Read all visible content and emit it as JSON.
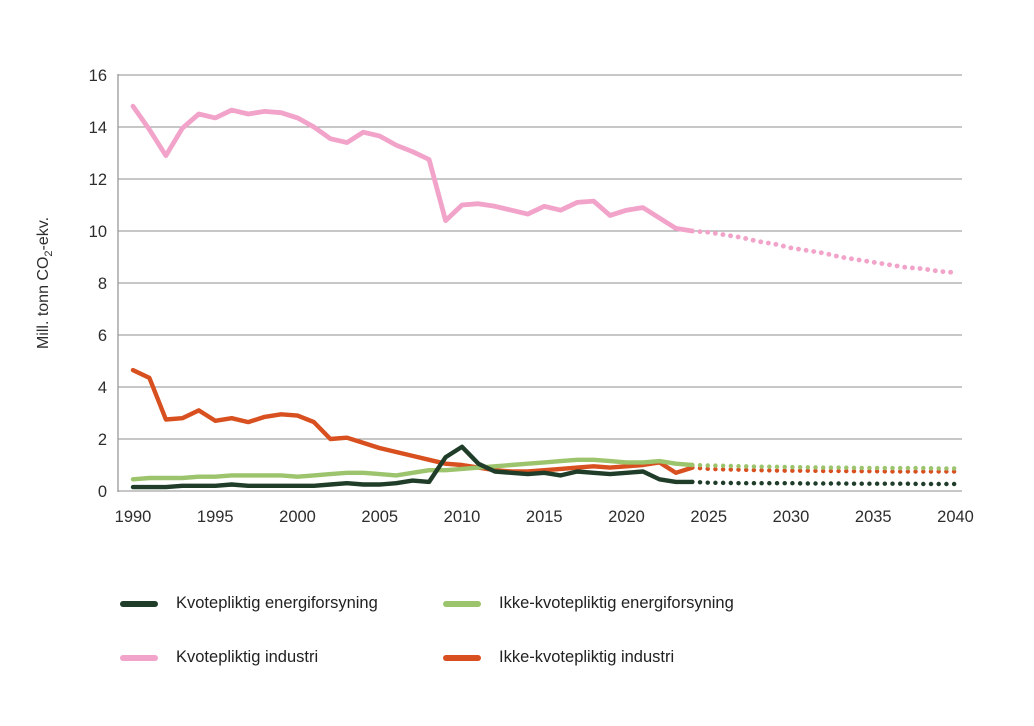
{
  "chart_title": "",
  "y_axis": {
    "label_pre": "Mill. tonn CO",
    "label_sub": "2",
    "label_post": "-ekv."
  },
  "colors": {
    "grid": "#8f8f8f",
    "tick_text": "#2d2d2d",
    "background": "#ffffff"
  },
  "legend": {
    "items": [
      {
        "label": "Kvotepliktig energiforsyning",
        "color": "#1f3d29"
      },
      {
        "label": "Ikke-kvotepliktig energiforsyning",
        "color": "#9cc46c"
      },
      {
        "label": "Kvotepliktig industri",
        "color": "#f2a3c9"
      },
      {
        "label": "Ikke-kvotepliktig industri",
        "color": "#d8501f"
      }
    ]
  },
  "chart_data": {
    "type": "line",
    "title": "",
    "xlabel": "",
    "ylabel": "Mill. tonn CO2-ekv.",
    "xlim": [
      1990,
      2040
    ],
    "ylim": [
      0,
      16
    ],
    "x_ticks": [
      1990,
      1995,
      2000,
      2005,
      2010,
      2015,
      2020,
      2025,
      2030,
      2035,
      2040
    ],
    "y_ticks": [
      0,
      2,
      4,
      6,
      8,
      10,
      12,
      14,
      16
    ],
    "grid": "horizontal",
    "legend_position": "bottom",
    "projection": "values from 2024 to 2040 are drawn as dotted projections",
    "solid_years_range": [
      1990,
      2024
    ],
    "dotted_years_range": [
      2024,
      2040
    ],
    "draw_order": [
      2,
      3,
      1,
      0
    ],
    "series": [
      {
        "name": "Kvotepliktig energiforsyning",
        "color": "#1f3d29",
        "line_width": 4.4,
        "solid": [
          0.15,
          0.15,
          0.15,
          0.2,
          0.2,
          0.2,
          0.25,
          0.2,
          0.2,
          0.2,
          0.2,
          0.2,
          0.25,
          0.3,
          0.25,
          0.25,
          0.3,
          0.4,
          0.35,
          1.3,
          1.7,
          1.05,
          0.75,
          0.7,
          0.65,
          0.7,
          0.6,
          0.75,
          0.7,
          0.65,
          0.7,
          0.75,
          0.45,
          0.35,
          0.35
        ],
        "dotted": [
          0.35,
          0.32,
          0.31,
          0.3,
          0.3,
          0.3,
          0.3,
          0.29,
          0.29,
          0.29,
          0.28,
          0.28,
          0.28,
          0.28,
          0.27,
          0.27,
          0.27
        ]
      },
      {
        "name": "Ikke-kvotepliktig energiforsyning",
        "color": "#9cc46c",
        "line_width": 4.4,
        "solid": [
          0.45,
          0.5,
          0.5,
          0.5,
          0.55,
          0.55,
          0.6,
          0.6,
          0.6,
          0.6,
          0.55,
          0.6,
          0.65,
          0.7,
          0.7,
          0.65,
          0.6,
          0.7,
          0.8,
          0.8,
          0.85,
          0.9,
          0.95,
          1.0,
          1.05,
          1.1,
          1.15,
          1.2,
          1.2,
          1.15,
          1.1,
          1.1,
          1.15,
          1.05,
          1.0
        ],
        "dotted": [
          1.0,
          0.98,
          0.97,
          0.95,
          0.94,
          0.93,
          0.92,
          0.91,
          0.9,
          0.9,
          0.89,
          0.89,
          0.88,
          0.88,
          0.88,
          0.87,
          0.87
        ]
      },
      {
        "name": "Kvotepliktig industri",
        "color": "#f2a3c9",
        "line_width": 4.8,
        "solid": [
          14.8,
          13.9,
          12.9,
          13.95,
          14.5,
          14.35,
          14.65,
          14.5,
          14.6,
          14.55,
          14.35,
          14.0,
          13.55,
          13.4,
          13.8,
          13.65,
          13.3,
          13.05,
          12.75,
          10.4,
          11.0,
          11.05,
          10.95,
          10.8,
          10.65,
          10.95,
          10.8,
          11.1,
          11.15,
          10.6,
          10.8,
          10.9,
          10.5,
          10.1,
          10.0
        ],
        "dotted": [
          10.0,
          9.95,
          9.85,
          9.75,
          9.6,
          9.5,
          9.35,
          9.25,
          9.15,
          9.0,
          8.9,
          8.8,
          8.7,
          8.6,
          8.55,
          8.45,
          8.4
        ]
      },
      {
        "name": "Ikke-kvotepliktig industri",
        "color": "#d8501f",
        "line_width": 4.4,
        "solid": [
          4.65,
          4.35,
          2.75,
          2.8,
          3.1,
          2.7,
          2.8,
          2.65,
          2.85,
          2.95,
          2.9,
          2.65,
          2.0,
          2.05,
          1.85,
          1.65,
          1.5,
          1.35,
          1.2,
          1.05,
          1.0,
          0.9,
          0.8,
          0.75,
          0.75,
          0.8,
          0.85,
          0.9,
          0.95,
          0.9,
          0.95,
          1.0,
          1.1,
          0.7,
          0.9
        ],
        "dotted": [
          0.9,
          0.85,
          0.83,
          0.82,
          0.8,
          0.79,
          0.78,
          0.78,
          0.77,
          0.77,
          0.76,
          0.76,
          0.75,
          0.75,
          0.75,
          0.75,
          0.75
        ]
      }
    ]
  }
}
